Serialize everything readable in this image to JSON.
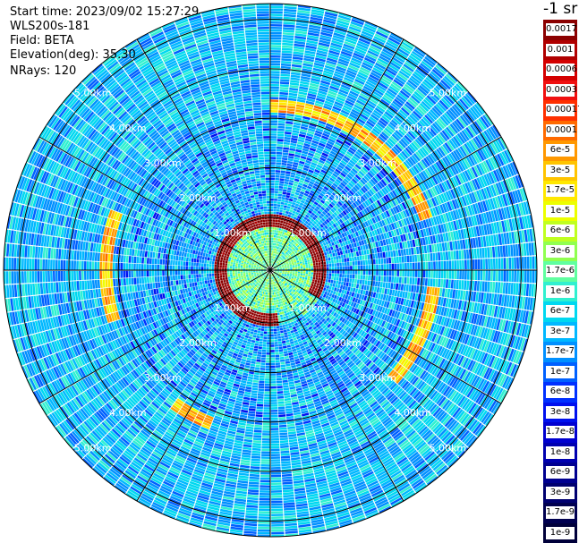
{
  "header": {
    "start_time": "Start time: 2023/09/02 15:27:29",
    "instrument": "WLS200s-181",
    "field": "Field: BETA",
    "elevation": "Elevation(deg): 35.30",
    "nrays": "NRays: 120"
  },
  "colorbar": {
    "unit": "-1 sr",
    "labels": [
      "0.0017",
      "0.001",
      "0.0006",
      "0.0003",
      "0.00017",
      "0.0001",
      "6e-5",
      "3e-5",
      "1.7e-5",
      "1e-5",
      "6e-6",
      "3e-6",
      "1.7e-6",
      "1e-6",
      "6e-7",
      "3e-7",
      "1.7e-7",
      "1e-7",
      "6e-8",
      "3e-8",
      "1.7e-8",
      "1e-8",
      "6e-9",
      "3e-9",
      "1.7e-9",
      "1e-9"
    ],
    "colors": [
      "#8b0000",
      "#b00000",
      "#d40000",
      "#f01010",
      "#ff3000",
      "#ff6a00",
      "#ff9800",
      "#ffc400",
      "#ffe800",
      "#ecff00",
      "#c0ff20",
      "#90ff50",
      "#60ffa0",
      "#30f0d0",
      "#00d8f0",
      "#00b8ff",
      "#0090ff",
      "#0060ff",
      "#0030ff",
      "#0010ee",
      "#0000d0",
      "#0000b0",
      "#000090",
      "#000070",
      "#000050",
      "#00003a"
    ]
  },
  "chart_data": {
    "type": "heatmap",
    "projection": "polar PPI",
    "field": "BETA",
    "elevation_deg": 35.3,
    "n_rays": 120,
    "range_rings_km": [
      1,
      2,
      3,
      4,
      5
    ],
    "ring_labels": [
      "1.00km",
      "2.00km",
      "3.00km",
      "4.00km",
      "5.00km"
    ],
    "unit_label": "-1 sr",
    "bands": [
      {
        "range_km": [
          0.1,
          1.0
        ],
        "dominant_value": "1.7e-6"
      },
      {
        "range_km": [
          1.0,
          1.25
        ],
        "dominant_value": "1e-4",
        "note": "strong return ring"
      },
      {
        "range_km": [
          1.25,
          3.6
        ],
        "dominant_value": "3e-7"
      },
      {
        "range_km": [
          3.6,
          3.9
        ],
        "dominant_value": "3e-5",
        "note": "partial arcs"
      },
      {
        "range_km": [
          3.9,
          6.2
        ],
        "dominant_value": "3e-7"
      }
    ]
  }
}
